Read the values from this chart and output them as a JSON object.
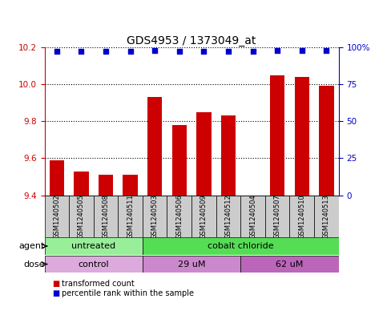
{
  "title": "GDS4953 / 1373049_at",
  "samples": [
    "GSM1240502",
    "GSM1240505",
    "GSM1240508",
    "GSM1240511",
    "GSM1240503",
    "GSM1240506",
    "GSM1240509",
    "GSM1240512",
    "GSM1240504",
    "GSM1240507",
    "GSM1240510",
    "GSM1240513"
  ],
  "bar_values": [
    9.59,
    9.53,
    9.51,
    9.51,
    9.93,
    9.78,
    9.85,
    9.83,
    9.4,
    10.05,
    10.04,
    9.99
  ],
  "percentile_values": [
    97,
    97,
    97,
    97,
    98,
    97,
    97,
    97,
    97,
    98,
    98,
    98
  ],
  "ylim_left": [
    9.4,
    10.2
  ],
  "ylim_right": [
    0,
    100
  ],
  "yticks_left": [
    9.4,
    9.6,
    9.8,
    10.0,
    10.2
  ],
  "yticks_right": [
    0,
    25,
    50,
    75,
    100
  ],
  "ytick_labels_right": [
    "0",
    "25",
    "50",
    "75",
    "100%"
  ],
  "bar_color": "#cc0000",
  "dot_color": "#0000cc",
  "sample_box_color": "#cccccc",
  "agent_groups": [
    {
      "label": "untreated",
      "start": 0,
      "end": 4,
      "color": "#99ee99"
    },
    {
      "label": "cobalt chloride",
      "start": 4,
      "end": 12,
      "color": "#55dd55"
    }
  ],
  "dose_groups": [
    {
      "label": "control",
      "start": 0,
      "end": 4,
      "color": "#ddaadd"
    },
    {
      "label": "29 uM",
      "start": 4,
      "end": 8,
      "color": "#cc88cc"
    },
    {
      "label": "62 uM",
      "start": 8,
      "end": 12,
      "color": "#bb66bb"
    }
  ],
  "legend_items": [
    {
      "label": "transformed count",
      "color": "#cc0000"
    },
    {
      "label": "percentile rank within the sample",
      "color": "#0000cc"
    }
  ],
  "grid_color": "#000000",
  "background_color": "#ffffff",
  "title_fontsize": 10,
  "tick_fontsize": 7.5,
  "sample_fontsize": 6,
  "label_fontsize": 8
}
